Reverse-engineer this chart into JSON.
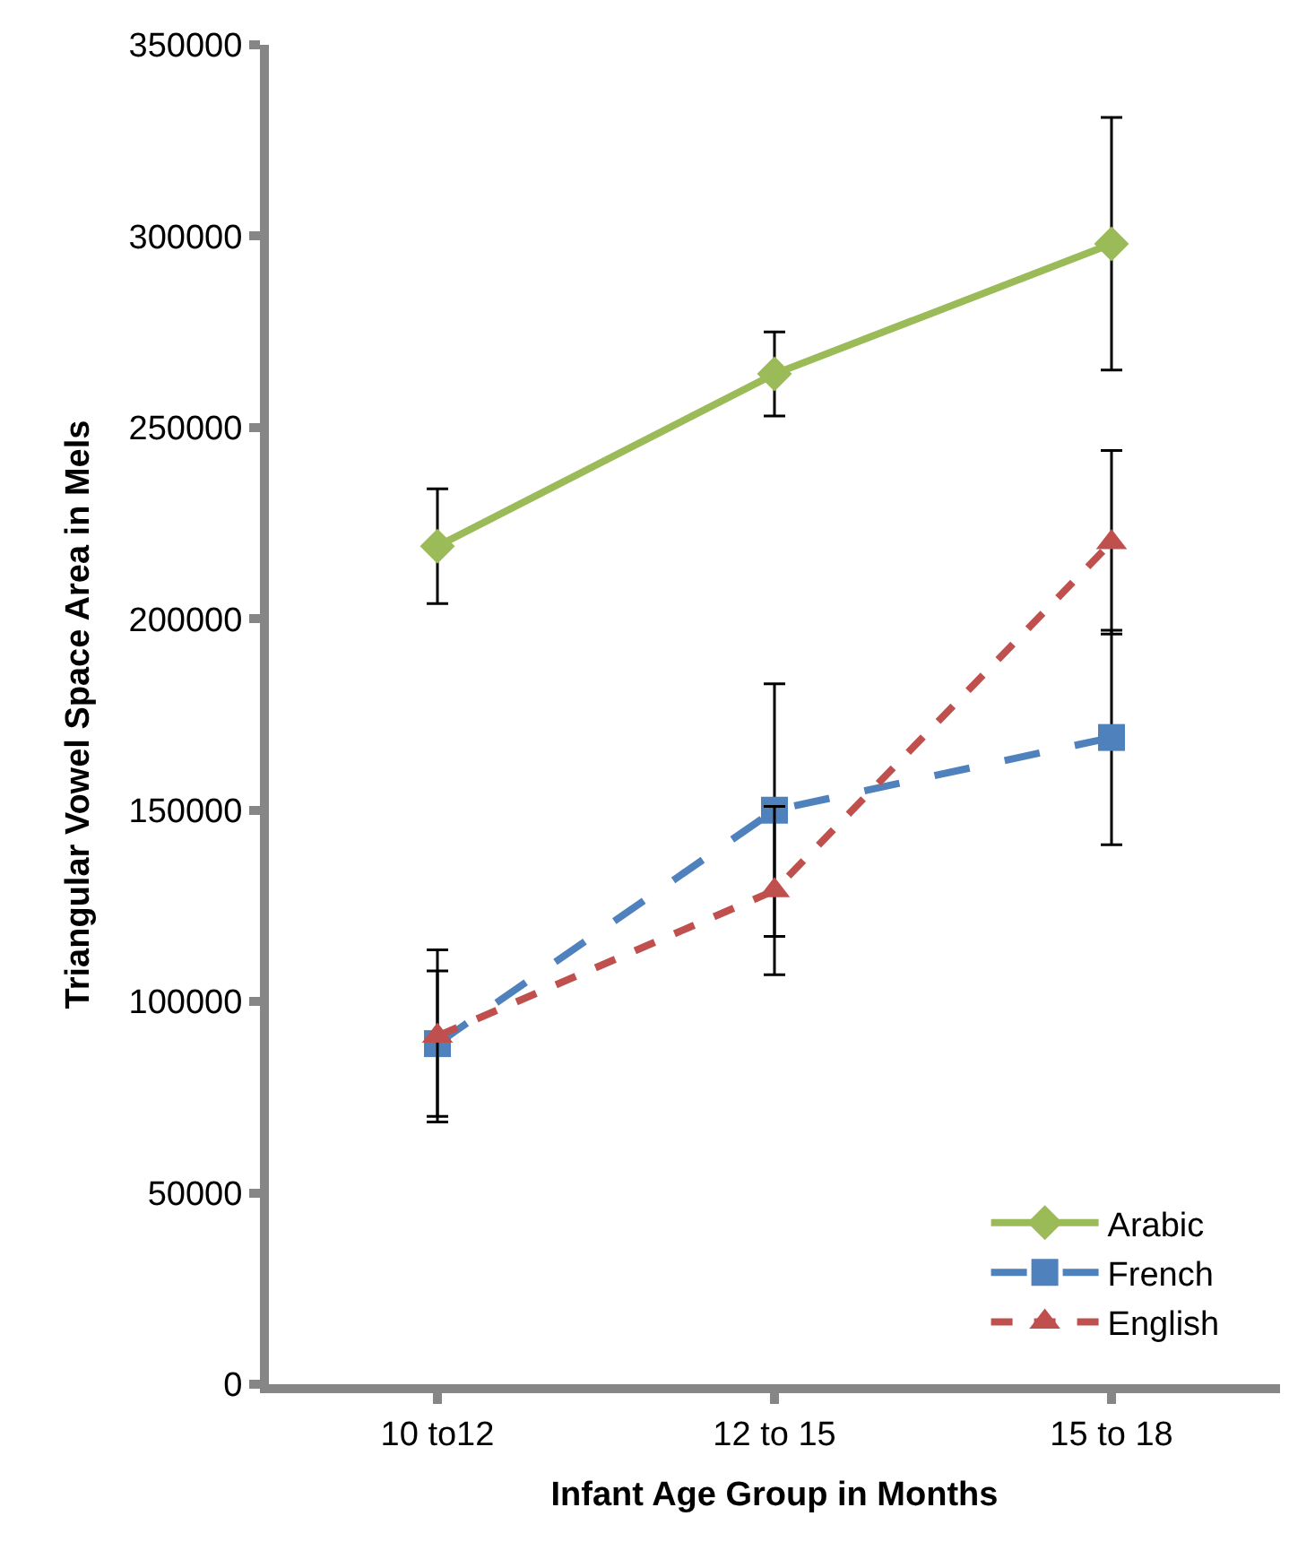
{
  "chart_data": {
    "type": "line",
    "xlabel": "Infant Age Group in Months",
    "ylabel": "Triangular Vowel Space Area in Mels",
    "categories": [
      "10 to12",
      "12 to 15",
      "15 to 18"
    ],
    "series": [
      {
        "name": "Arabic",
        "color": "#9bbb59",
        "values": [
          219000,
          264000,
          298000
        ],
        "errors": [
          15000,
          11000,
          33000
        ],
        "marker": "diamond",
        "line_style": "solid"
      },
      {
        "name": "French",
        "color": "#4f81bd",
        "values": [
          89000,
          150000,
          169000
        ],
        "errors": [
          19000,
          33000,
          28000
        ],
        "marker": "square",
        "line_style": "dashed"
      },
      {
        "name": "English",
        "color": "#c0504d",
        "values": [
          91000,
          129000,
          220000
        ],
        "errors": [
          22500,
          22000,
          24000
        ],
        "marker": "triangle",
        "line_style": "dotted"
      }
    ],
    "ylim": [
      0,
      350000
    ],
    "yticks": [
      0,
      50000,
      100000,
      150000,
      200000,
      250000,
      300000,
      350000
    ],
    "legend": "bottom right"
  }
}
